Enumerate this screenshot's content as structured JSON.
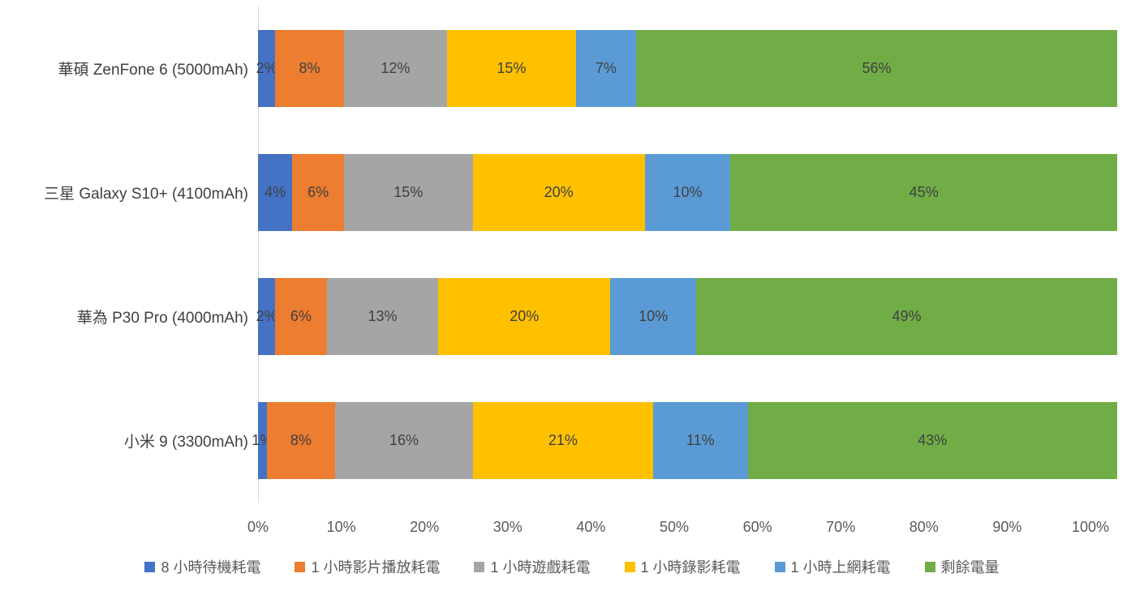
{
  "chart_data": {
    "type": "bar",
    "orientation": "horizontal",
    "stacked": true,
    "title": "",
    "categories": [
      "華碩 ZenFone 6 (5000mAh)",
      "三星 Galaxy S10+ (4100mAh)",
      "華為 P30 Pro (4000mAh)",
      "小米 9 (3300mAh)"
    ],
    "series": [
      {
        "name": "8 小時待機耗電",
        "color": "#4472c4",
        "values": [
          2,
          4,
          2,
          1
        ]
      },
      {
        "name": "1 小時影片播放耗電",
        "color": "#ed7d31",
        "values": [
          8,
          6,
          6,
          8
        ]
      },
      {
        "name": "1 小時遊戲耗電",
        "color": "#a5a5a5",
        "values": [
          12,
          15,
          13,
          16
        ]
      },
      {
        "name": "1 小時錄影耗電",
        "color": "#ffc000",
        "values": [
          15,
          20,
          20,
          21
        ]
      },
      {
        "name": "1 小時上網耗電",
        "color": "#5b9bd5",
        "values": [
          7,
          10,
          10,
          11
        ]
      },
      {
        "name": "剩餘電量",
        "color": "#70ad47",
        "values": [
          56,
          45,
          49,
          43
        ]
      }
    ],
    "x_ticks": [
      "0%",
      "10%",
      "20%",
      "30%",
      "40%",
      "50%",
      "60%",
      "70%",
      "80%",
      "90%",
      "100%"
    ],
    "xlim": [
      0,
      100
    ],
    "grid": false,
    "legend_position": "bottom",
    "data_label_format": "{value}%",
    "axis_line_color": "#d9d9d9",
    "label_text_color": "#404040",
    "axis_text_color": "#595959"
  }
}
